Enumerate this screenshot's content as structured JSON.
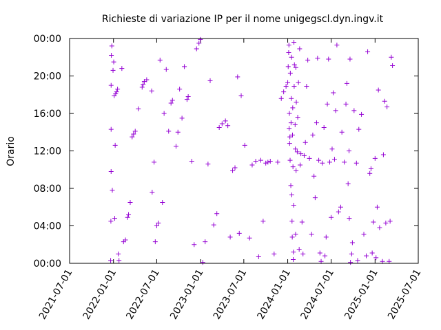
{
  "chart_data": {
    "type": "scatter",
    "title": "Richieste di variazione IP per il nome unigegscl.dyn.ingv.it",
    "xlabel": "",
    "ylabel": "Orario",
    "x_ticks": [
      "2021-07-01",
      "2022-01-01",
      "2022-07-01",
      "2023-01-01",
      "2023-07-01",
      "2024-01-01",
      "2024-07-01",
      "2025-01-01",
      "2025-07-01"
    ],
    "y_ticks": [
      "00:00",
      "04:00",
      "08:00",
      "12:00",
      "16:00",
      "20:00",
      "00:00"
    ],
    "xlim": [
      "2021-07-01",
      "2025-07-01"
    ],
    "ylim": [
      0,
      24
    ],
    "grid": false,
    "marker": "+",
    "color": "#9400d3",
    "series": [
      {
        "points": [
          [
            "2021-12-20",
            0.3
          ],
          [
            "2021-12-21",
            4.5
          ],
          [
            "2021-12-22",
            9.8
          ],
          [
            "2021-12-22",
            14.3
          ],
          [
            "2021-12-22",
            19.0
          ],
          [
            "2021-12-23",
            22.2
          ],
          [
            "2021-12-25",
            23.2
          ],
          [
            "2021-12-27",
            7.8
          ],
          [
            "2021-12-30",
            20.6
          ],
          [
            "2022-01-02",
            21.5
          ],
          [
            "2022-01-04",
            17.9
          ],
          [
            "2022-01-06",
            4.8
          ],
          [
            "2022-01-08",
            12.6
          ],
          [
            "2022-01-10",
            18.1
          ],
          [
            "2022-01-14",
            18.3
          ],
          [
            "2022-01-18",
            18.6
          ],
          [
            "2022-01-21",
            1.0
          ],
          [
            "2022-01-24",
            0.3
          ],
          [
            "2022-02-05",
            20.8
          ],
          [
            "2022-02-12",
            2.3
          ],
          [
            "2022-02-20",
            2.5
          ],
          [
            "2022-03-01",
            4.9
          ],
          [
            "2022-03-05",
            5.2
          ],
          [
            "2022-03-12",
            6.5
          ],
          [
            "2022-03-20",
            13.5
          ],
          [
            "2022-03-26",
            13.8
          ],
          [
            "2022-04-02",
            14.1
          ],
          [
            "2022-04-15",
            16.5
          ],
          [
            "2022-05-01",
            18.8
          ],
          [
            "2022-05-05",
            19.1
          ],
          [
            "2022-05-10",
            19.4
          ],
          [
            "2022-05-20",
            19.6
          ],
          [
            "2022-06-10",
            18.4
          ],
          [
            "2022-06-12",
            7.6
          ],
          [
            "2022-06-20",
            10.8
          ],
          [
            "2022-06-25",
            2.3
          ],
          [
            "2022-07-01",
            4.0
          ],
          [
            "2022-07-08",
            4.3
          ],
          [
            "2022-07-15",
            21.7
          ],
          [
            "2022-07-25",
            6.5
          ],
          [
            "2022-08-01",
            16.0
          ],
          [
            "2022-08-10",
            20.7
          ],
          [
            "2022-08-20",
            14.1
          ],
          [
            "2022-08-30",
            17.1
          ],
          [
            "2022-09-05",
            17.4
          ],
          [
            "2022-09-20",
            12.5
          ],
          [
            "2022-09-28",
            14.0
          ],
          [
            "2022-10-05",
            18.6
          ],
          [
            "2022-10-15",
            15.5
          ],
          [
            "2022-10-25",
            21.0
          ],
          [
            "2022-11-05",
            17.5
          ],
          [
            "2022-11-10",
            17.8
          ],
          [
            "2022-11-25",
            10.9
          ],
          [
            "2022-12-05",
            2.0
          ],
          [
            "2022-12-15",
            22.9
          ],
          [
            "2022-12-25",
            23.5
          ],
          [
            "2022-12-31",
            23.9
          ],
          [
            "2023-01-10",
            0.1
          ],
          [
            "2023-01-20",
            2.3
          ],
          [
            "2023-02-01",
            10.6
          ],
          [
            "2023-02-10",
            19.5
          ],
          [
            "2023-02-25",
            4.1
          ],
          [
            "2023-03-10",
            5.3
          ],
          [
            "2023-03-20",
            14.5
          ],
          [
            "2023-04-01",
            14.9
          ],
          [
            "2023-04-15",
            15.2
          ],
          [
            "2023-04-25",
            14.7
          ],
          [
            "2023-05-05",
            2.8
          ],
          [
            "2023-05-15",
            9.9
          ],
          [
            "2023-05-25",
            10.2
          ],
          [
            "2023-06-05",
            19.9
          ],
          [
            "2023-06-12",
            3.2
          ],
          [
            "2023-06-20",
            17.9
          ],
          [
            "2023-07-05",
            12.6
          ],
          [
            "2023-07-25",
            2.7
          ],
          [
            "2023-08-05",
            10.5
          ],
          [
            "2023-08-20",
            10.9
          ],
          [
            "2023-09-01",
            0.7
          ],
          [
            "2023-09-10",
            11.0
          ],
          [
            "2023-09-20",
            4.5
          ],
          [
            "2023-10-01",
            10.7
          ],
          [
            "2023-10-10",
            10.8
          ],
          [
            "2023-10-20",
            10.9
          ],
          [
            "2023-11-05",
            1.0
          ],
          [
            "2023-11-20",
            10.8
          ],
          [
            "2023-12-05",
            17.6
          ],
          [
            "2023-12-15",
            18.3
          ],
          [
            "2023-12-25",
            18.9
          ],
          [
            "2024-01-01",
            19.3
          ],
          [
            "2024-01-03",
            21.0
          ],
          [
            "2024-01-05",
            22.5
          ],
          [
            "2024-01-06",
            23.3
          ],
          [
            "2024-01-07",
            14.4
          ],
          [
            "2024-01-08",
            16.0
          ],
          [
            "2024-01-09",
            12.8
          ],
          [
            "2024-01-10",
            13.5
          ],
          [
            "2024-01-11",
            11.0
          ],
          [
            "2024-01-12",
            20.3
          ],
          [
            "2024-01-14",
            8.3
          ],
          [
            "2024-01-15",
            15.0
          ],
          [
            "2024-01-16",
            17.6
          ],
          [
            "2024-01-17",
            22.0
          ],
          [
            "2024-01-18",
            7.3
          ],
          [
            "2024-01-19",
            4.5
          ],
          [
            "2024-01-20",
            2.8
          ],
          [
            "2024-01-21",
            13.7
          ],
          [
            "2024-01-22",
            16.6
          ],
          [
            "2024-01-23",
            10.3
          ],
          [
            "2024-01-24",
            0.4
          ],
          [
            "2024-01-25",
            1.2
          ],
          [
            "2024-01-26",
            6.2
          ],
          [
            "2024-01-27",
            23.6
          ],
          [
            "2024-01-28",
            18.9
          ],
          [
            "2024-01-29",
            21.2
          ],
          [
            "2024-02-01",
            14.8
          ],
          [
            "2024-02-02",
            12.2
          ],
          [
            "2024-02-03",
            3.1
          ],
          [
            "2024-02-04",
            20.9
          ],
          [
            "2024-02-05",
            9.9
          ],
          [
            "2024-02-06",
            17.2
          ],
          [
            "2024-02-10",
            11.9
          ],
          [
            "2024-02-12",
            15.6
          ],
          [
            "2024-02-15",
            19.3
          ],
          [
            "2024-02-18",
            1.5
          ],
          [
            "2024-02-20",
            22.9
          ],
          [
            "2024-02-22",
            10.5
          ],
          [
            "2024-02-25",
            11.7
          ],
          [
            "2024-03-01",
            4.4
          ],
          [
            "2024-03-05",
            1.0
          ],
          [
            "2024-03-10",
            11.5
          ],
          [
            "2024-03-15",
            12.9
          ],
          [
            "2024-03-20",
            18.9
          ],
          [
            "2024-03-25",
            21.7
          ],
          [
            "2024-04-01",
            11.2
          ],
          [
            "2024-04-10",
            3.1
          ],
          [
            "2024-04-15",
            13.7
          ],
          [
            "2024-04-20",
            9.3
          ],
          [
            "2024-04-25",
            7.0
          ],
          [
            "2024-05-01",
            15.0
          ],
          [
            "2024-05-05",
            21.9
          ],
          [
            "2024-05-10",
            11.0
          ],
          [
            "2024-05-15",
            1.1
          ],
          [
            "2024-05-20",
            0.2
          ],
          [
            "2024-05-25",
            10.7
          ],
          [
            "2024-06-01",
            14.5
          ],
          [
            "2024-06-05",
            0.8
          ],
          [
            "2024-06-10",
            2.8
          ],
          [
            "2024-06-15",
            17.0
          ],
          [
            "2024-06-20",
            21.8
          ],
          [
            "2024-06-25",
            10.8
          ],
          [
            "2024-07-01",
            4.9
          ],
          [
            "2024-07-05",
            12.2
          ],
          [
            "2024-07-10",
            18.2
          ],
          [
            "2024-07-15",
            11.1
          ],
          [
            "2024-07-20",
            16.3
          ],
          [
            "2024-07-25",
            23.3
          ],
          [
            "2024-08-01",
            5.5
          ],
          [
            "2024-08-10",
            6.0
          ],
          [
            "2024-08-15",
            14.0
          ],
          [
            "2024-08-25",
            10.8
          ],
          [
            "2024-09-01",
            17.0
          ],
          [
            "2024-09-05",
            19.2
          ],
          [
            "2024-09-10",
            8.5
          ],
          [
            "2024-09-14",
            12.0
          ],
          [
            "2024-09-15",
            4.8
          ],
          [
            "2024-09-18",
            21.8
          ],
          [
            "2024-09-20",
            0.1
          ],
          [
            "2024-09-25",
            1.0
          ],
          [
            "2024-09-28",
            2.2
          ],
          [
            "2024-10-05",
            16.3
          ],
          [
            "2024-10-15",
            10.7
          ],
          [
            "2024-10-20",
            0.3
          ],
          [
            "2024-10-25",
            14.3
          ],
          [
            "2024-11-05",
            15.9
          ],
          [
            "2024-11-15",
            3.1
          ],
          [
            "2024-11-25",
            0.8
          ],
          [
            "2024-12-01",
            22.6
          ],
          [
            "2024-12-10",
            9.6
          ],
          [
            "2024-12-15",
            10.1
          ],
          [
            "2024-12-20",
            1.1
          ],
          [
            "2024-12-25",
            4.4
          ],
          [
            "2025-01-01",
            11.2
          ],
          [
            "2025-01-05",
            0.6
          ],
          [
            "2025-01-10",
            6.0
          ],
          [
            "2025-01-15",
            18.5
          ],
          [
            "2025-01-20",
            3.8
          ],
          [
            "2025-02-01",
            0.2
          ],
          [
            "2025-02-05",
            11.6
          ],
          [
            "2025-02-10",
            17.3
          ],
          [
            "2025-02-15",
            4.3
          ],
          [
            "2025-02-20",
            16.7
          ],
          [
            "2025-03-01",
            0.2
          ],
          [
            "2025-03-05",
            4.5
          ],
          [
            "2025-03-10",
            22.0
          ],
          [
            "2025-03-15",
            21.1
          ]
        ]
      }
    ]
  }
}
